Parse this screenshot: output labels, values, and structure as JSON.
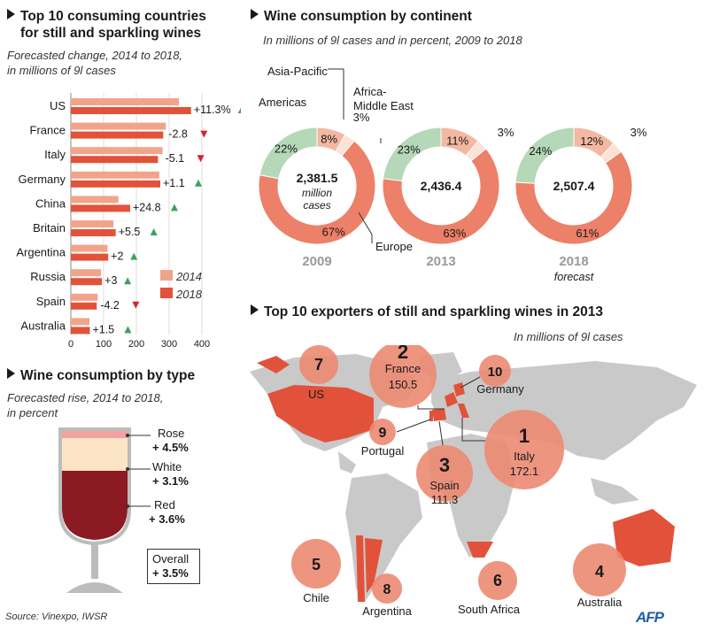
{
  "colors": {
    "bar2014": "#f2a48a",
    "bar2018": "#e2523a",
    "up": "#3aa35a",
    "down": "#d3262e",
    "europe": "#ec8068",
    "asia": "#f4b8a2",
    "americas": "#b5d8b8",
    "africa": "#fde1d5",
    "map_land": "#c9c9c9",
    "bubble": "#ec8a72",
    "rose": "#f1a2a0",
    "white": "#fbe5c4",
    "red": "#8b1a22",
    "glass": "#bcbcbc"
  },
  "panel1": {
    "title_line1": "Top 10 consuming countries",
    "title_line2": "for still and sparkling wines",
    "subtitle_line1": "Forecasted change, 2014 to 2018,",
    "subtitle_line2": "in millions of 9l cases",
    "legend_2014": "2014",
    "legend_2018": "2018",
    "ticks": [
      "0",
      "100",
      "200",
      "300",
      "400"
    ]
  },
  "panel2": {
    "title": "Wine consumption by continent",
    "subtitle": "In millions of 9l cases and in percent, 2009 to 2018",
    "label_asia": "Asia-Pacific",
    "label_americas": "Americas",
    "label_africa_line1": "Africa-",
    "label_africa_line2": "Middle East",
    "label_europe": "Europe"
  },
  "panel3": {
    "title": "Wine consumption by type",
    "subtitle_line1": "Forecasted rise, 2014 to 2018,",
    "subtitle_line2": "in percent",
    "rose_label": "Rose",
    "rose_value": "+ 4.5%",
    "white_label": "White",
    "white_value": "+ 3.1%",
    "red_label": "Red",
    "red_value": "+ 3.6%",
    "overall_label": "Overall",
    "overall_value": "+ 3.5%"
  },
  "panel4": {
    "title": "Top 10 exporters of still and sparkling wines in 2013",
    "subtitle": "In millions of 9l cases"
  },
  "footer": {
    "source": "Source: Vinexpo, IWSR",
    "logo": "AFP"
  },
  "chart_data": [
    {
      "type": "bar",
      "categories": [
        "US",
        "France",
        "Italy",
        "Germany",
        "China",
        "Britain",
        "Argentina",
        "Russia",
        "Spain",
        "Australia"
      ],
      "series": [
        {
          "name": "2014",
          "values": [
            330,
            290,
            280,
            270,
            145,
            130,
            112,
            92,
            82,
            57
          ]
        },
        {
          "name": "2018",
          "values": [
            367,
            282,
            266,
            273,
            181,
            137,
            114,
            95,
            79,
            58
          ]
        }
      ],
      "changes": [
        "+11.3%",
        "-2.8",
        "-5.1",
        "+1.1",
        "+24.8",
        "+5.5",
        "+2",
        "+3",
        "-4.2",
        "+1.5"
      ],
      "directions": [
        "up",
        "down",
        "down",
        "up",
        "up",
        "up",
        "up",
        "up",
        "down",
        "up"
      ],
      "xlim": [
        0,
        420
      ],
      "ticks": [
        0,
        100,
        200,
        300,
        400
      ]
    },
    {
      "type": "pie",
      "charts": [
        {
          "year": "2009",
          "total": "2,381.5",
          "unit_line1": "million",
          "unit_line2": "cases",
          "slices": [
            {
              "name": "Europe",
              "value": 67,
              "label": "67%"
            },
            {
              "name": "Americas",
              "value": 22,
              "label": "22%"
            },
            {
              "name": "Asia-Pacific",
              "value": 8,
              "label": "8%"
            },
            {
              "name": "Africa-Middle East",
              "value": 3,
              "label": "3%"
            }
          ]
        },
        {
          "year": "2013",
          "total": "2,436.4",
          "slices": [
            {
              "name": "Europe",
              "value": 63,
              "label": "63%"
            },
            {
              "name": "Americas",
              "value": 23,
              "label": "23%"
            },
            {
              "name": "Asia-Pacific",
              "value": 11,
              "label": "11%"
            },
            {
              "name": "Africa-Middle East",
              "value": 3,
              "label": "3%"
            }
          ]
        },
        {
          "year": "2018",
          "year_note": "forecast",
          "total": "2,507.4",
          "slices": [
            {
              "name": "Europe",
              "value": 61,
              "label": "61%"
            },
            {
              "name": "Americas",
              "value": 24,
              "label": "24%"
            },
            {
              "name": "Asia-Pacific",
              "value": 12,
              "label": "12%"
            },
            {
              "name": "Africa-Middle East",
              "value": 3,
              "label": "3%"
            }
          ]
        }
      ]
    },
    {
      "type": "bar",
      "categories": [
        "Rose",
        "White",
        "Red",
        "Overall"
      ],
      "values": [
        4.5,
        3.1,
        3.6,
        3.5
      ]
    },
    {
      "type": "scatter",
      "exporters": [
        {
          "rank": "1",
          "name": "Italy",
          "value": "172.1"
        },
        {
          "rank": "2",
          "name": "France",
          "value": "150.5"
        },
        {
          "rank": "3",
          "name": "Spain",
          "value": "111.3"
        },
        {
          "rank": "4",
          "name": "Australia"
        },
        {
          "rank": "5",
          "name": "Chile"
        },
        {
          "rank": "6",
          "name": "South Africa"
        },
        {
          "rank": "7",
          "name": "US"
        },
        {
          "rank": "8",
          "name": "Argentina"
        },
        {
          "rank": "9",
          "name": "Portugal"
        },
        {
          "rank": "10",
          "name": "Germany"
        }
      ]
    }
  ]
}
